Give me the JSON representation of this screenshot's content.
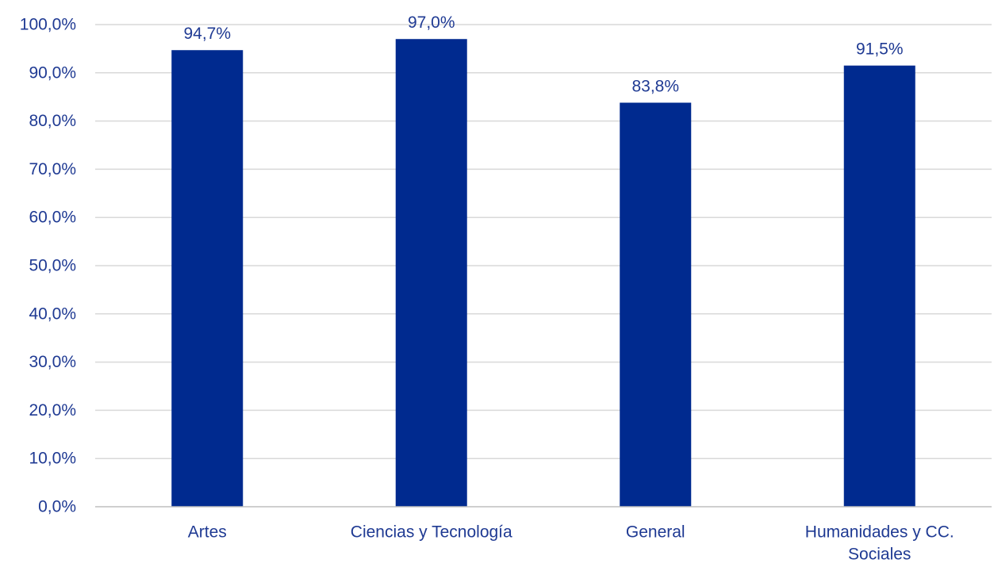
{
  "chart_data": {
    "type": "bar",
    "categories": [
      "Artes",
      "Ciencias y Tecnología",
      "General",
      "Humanidades y CC. Sociales"
    ],
    "category_label_lines": [
      [
        "Artes"
      ],
      [
        "Ciencias y Tecnología"
      ],
      [
        "General"
      ],
      [
        "Humanidades y CC.",
        "Sociales"
      ]
    ],
    "values": [
      94.7,
      97.0,
      83.8,
      91.5
    ],
    "data_labels": [
      "94,7%",
      "97,0%",
      "83,8%",
      "91,5%"
    ],
    "ylim": [
      0,
      100
    ],
    "yticks": [
      0,
      10,
      20,
      30,
      40,
      50,
      60,
      70,
      80,
      90,
      100
    ],
    "ytick_labels": [
      "0,0%",
      "10,0%",
      "20,0%",
      "30,0%",
      "40,0%",
      "50,0%",
      "60,0%",
      "70,0%",
      "80,0%",
      "90,0%",
      "100,0%"
    ],
    "title": "",
    "xlabel": "",
    "ylabel": "",
    "grid": true,
    "legend": "none",
    "colors": {
      "bar": "#002A8F",
      "text": "#1F3A93",
      "grid": "#D9D9D9",
      "axis": "#BFBFBF"
    }
  }
}
